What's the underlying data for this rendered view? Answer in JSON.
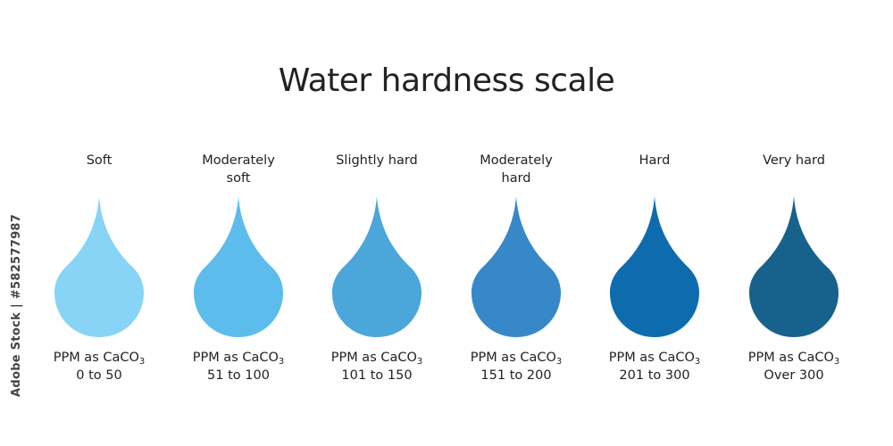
{
  "title": "Water hardness scale",
  "side_text": "Adobe Stock | #582577987",
  "ppm_prefix": "PPM as CaCO",
  "ppm_subscript": "3",
  "levels": [
    {
      "name_lines": [
        "Soft"
      ],
      "range": "0 to 50",
      "color": "#87D4F6"
    },
    {
      "name_lines": [
        "Moderately",
        "soft"
      ],
      "range": "51 to 100",
      "color": "#5CBCEC"
    },
    {
      "name_lines": [
        "Slightly hard"
      ],
      "range": "101 to 150",
      "color": "#4BA6D9"
    },
    {
      "name_lines": [
        "Moderately",
        "hard"
      ],
      "range": "151 to 200",
      "color": "#3688C9"
    },
    {
      "name_lines": [
        "Hard"
      ],
      "range": "201 to 300",
      "color": "#0E6CAE"
    },
    {
      "name_lines": [
        "Very hard"
      ],
      "range": "Over 300",
      "color": "#17628C"
    }
  ]
}
